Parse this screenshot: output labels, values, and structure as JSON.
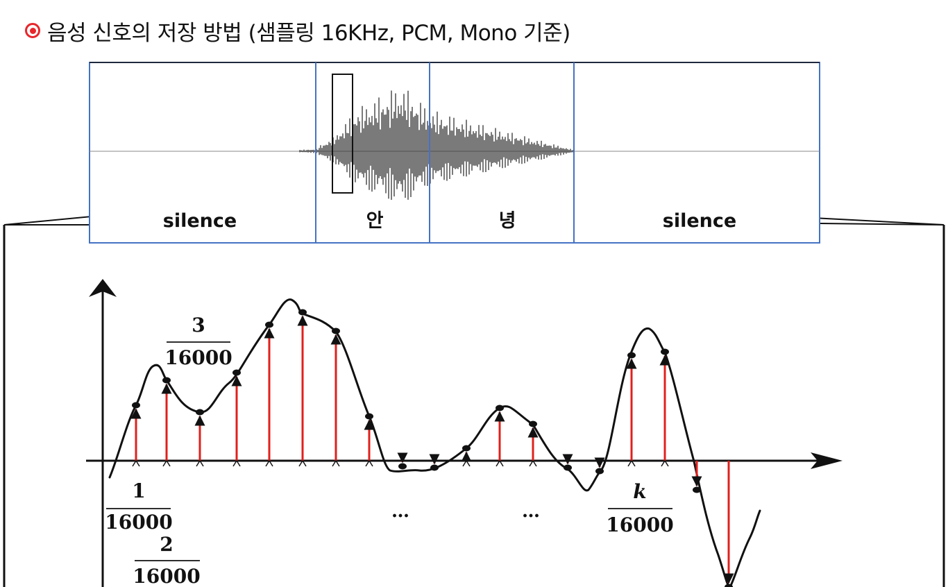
{
  "title": "음성 신호의 저장 방법 (샘플링 16KHz, PCM, Mono 기준)",
  "colors": {
    "bullet": "#e8262b",
    "segment_border": "#4472c4",
    "sample_arrow": "#e0201c",
    "waveform": "#111111"
  },
  "segments": [
    {
      "label": "silence"
    },
    {
      "label": "안"
    },
    {
      "label": "녕"
    },
    {
      "label": "silence"
    }
  ],
  "fractions": [
    {
      "numerator": "1",
      "denominator": "16000"
    },
    {
      "numerator": "2",
      "denominator": "16000"
    },
    {
      "numerator": "3",
      "denominator": "16000"
    },
    {
      "numerator": "k",
      "denominator": "16000"
    }
  ],
  "ellipses": [
    "…",
    "…"
  ]
}
